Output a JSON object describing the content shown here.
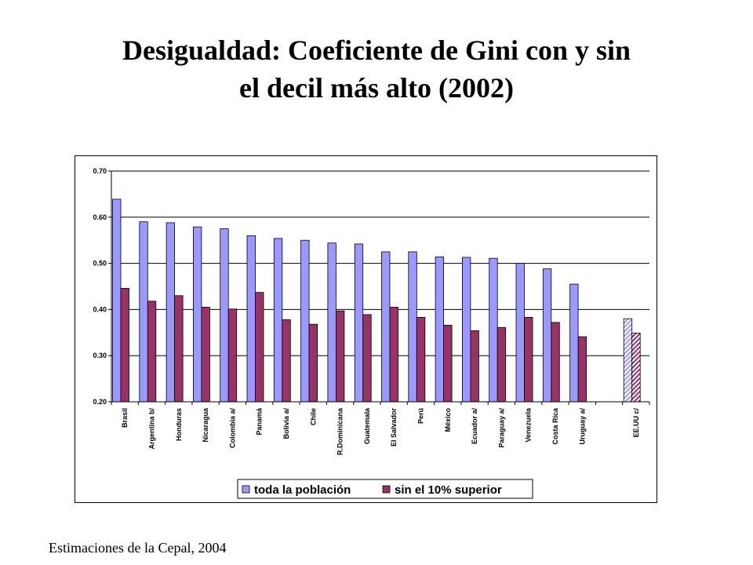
{
  "title_line1": "Desigualdad: Coeficiente de Gini con y sin",
  "title_line2": "el decil más alto (2002)",
  "footnote": "Estimaciones de la Cepal, 2004",
  "colors": {
    "series1": "#9999ff",
    "series2": "#993366",
    "grid": "#000000"
  },
  "chart_data": {
    "type": "bar",
    "title": "",
    "xlabel": "",
    "ylabel": "",
    "ylim": [
      0.2,
      0.7
    ],
    "yticks": [
      "0.20",
      "0.30",
      "0.40",
      "0.50",
      "0.60",
      "0.70"
    ],
    "grid": true,
    "legend_position": "bottom",
    "categories": [
      "Brasil",
      "Argentina b/",
      "Honduras",
      "Nicaragua",
      "Colombia a/",
      "Panamá",
      "Bolivia a/",
      "Chile",
      "R.Dominicana",
      "Guatemala",
      "El Salvador",
      "Perú",
      "México",
      "Ecuador a/",
      "Paraguay a/",
      "Venezuela",
      "Costa Rica",
      "Uruguay a/",
      "",
      "EE.UU c/"
    ],
    "series": [
      {
        "name": "toda la población",
        "values": [
          0.639,
          0.59,
          0.588,
          0.579,
          0.575,
          0.56,
          0.554,
          0.55,
          0.544,
          0.542,
          0.525,
          0.525,
          0.514,
          0.513,
          0.511,
          0.5,
          0.488,
          0.455,
          null,
          0.38
        ]
      },
      {
        "name": "sin el 10% superior",
        "values": [
          0.446,
          0.418,
          0.43,
          0.405,
          0.401,
          0.437,
          0.378,
          0.368,
          0.397,
          0.389,
          0.405,
          0.383,
          0.366,
          0.354,
          0.361,
          0.383,
          0.372,
          0.341,
          null,
          0.349
        ]
      }
    ],
    "hatched_categories": [
      "EE.UU c/"
    ]
  }
}
